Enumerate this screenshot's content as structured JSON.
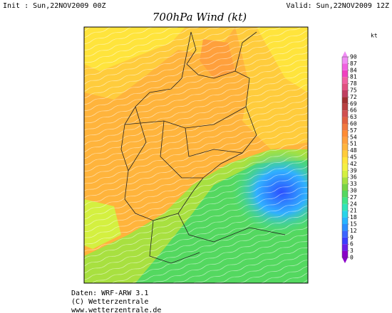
{
  "header": {
    "init": "Init : Sun,22NOV2009 00Z",
    "valid": "Valid: Sun,22NOV2009 12Z",
    "title": "700hPa Wind (kt)"
  },
  "colorbar": {
    "unit": "kt",
    "ticks": [
      0,
      3,
      6,
      9,
      12,
      15,
      18,
      21,
      24,
      27,
      30,
      33,
      36,
      39,
      42,
      45,
      48,
      51,
      54,
      57,
      60,
      63,
      66,
      69,
      72,
      75,
      78,
      81,
      84,
      87,
      90
    ],
    "colors": [
      "#8a00c8",
      "#6a1ee8",
      "#3c3cff",
      "#3c64ff",
      "#2c90ff",
      "#28b4ff",
      "#28d4e8",
      "#30e4b8",
      "#40e488",
      "#54d860",
      "#78d444",
      "#a8e040",
      "#d4f040",
      "#f4f040",
      "#ffe43c",
      "#ffcc3c",
      "#ffb43c",
      "#ffa03c",
      "#ff8c34",
      "#f07840",
      "#e06040",
      "#d05050",
      "#b84040",
      "#a03030",
      "#c04060",
      "#e05080",
      "#f060a0",
      "#f040c0",
      "#f060e0",
      "#f08cf4"
    ]
  },
  "footer": [
    "Daten: WRF-ARW 3.1",
    "(C) Wetterzentrale",
    "www.wetterzentrale.de"
  ]
}
